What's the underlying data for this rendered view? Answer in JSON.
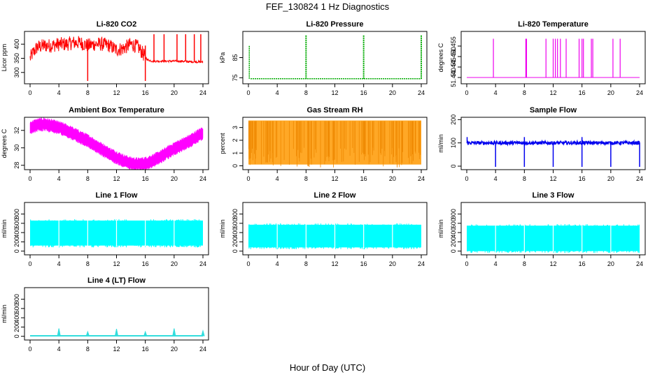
{
  "title": "FEF_130824  1 Hz Diagnostics",
  "xlabel": "Hour of Day (UTC)",
  "chart_data": [
    {
      "type": "line",
      "title": "Li-820 CO2",
      "ylabel": "Licor ppm",
      "xlim": [
        0,
        24
      ],
      "ylim": [
        260,
        445
      ],
      "xticks": [
        0,
        4,
        8,
        12,
        16,
        20,
        24
      ],
      "yticks": [
        300,
        350,
        400
      ],
      "ytick_labels": [
        "300",
        "350",
        "400"
      ],
      "color": "#ff0000",
      "pattern": "co2",
      "series": [
        {
          "x": [
            0,
            0.3,
            1,
            2,
            3,
            4,
            5,
            6,
            7,
            8,
            9,
            10,
            11,
            12,
            13,
            14,
            15,
            16,
            16.3,
            17,
            18,
            19,
            20,
            21,
            22,
            23,
            24
          ],
          "values": [
            350,
            365,
            390,
            395,
            395,
            400,
            400,
            405,
            405,
            395,
            400,
            400,
            395,
            380,
            385,
            400,
            390,
            355,
            345,
            340,
            340,
            340,
            340,
            340,
            338,
            338,
            337
          ]
        }
      ]
    },
    {
      "type": "line",
      "title": "Li-820 Pressure",
      "ylabel": "kPa",
      "xlim": [
        0,
        24
      ],
      "ylim": [
        72,
        98
      ],
      "xticks": [
        0,
        4,
        8,
        12,
        16,
        20,
        24
      ],
      "yticks": [
        75,
        85
      ],
      "ytick_labels": [
        "75",
        "85"
      ],
      "color": "#00aa00",
      "pattern": "pressure",
      "series": [
        {
          "x": [
            0,
            24
          ],
          "values": [
            74.5,
            74.5
          ]
        }
      ]
    },
    {
      "type": "line",
      "title": "Li-820 Temperature",
      "ylabel": "degrees C",
      "xlim": [
        0,
        24
      ],
      "ylim": [
        51.437,
        51.462
      ],
      "xticks": [
        0,
        4,
        8,
        12,
        16,
        20,
        24
      ],
      "yticks": [
        51.44,
        51.445,
        51.45,
        51.455
      ],
      "ytick_labels": [
        "51.440",
        "51.445",
        "51.450",
        "51.455"
      ],
      "color": "#ee00ee",
      "pattern": "temp",
      "series": [
        {
          "x": [
            0,
            24
          ],
          "values": [
            51.44,
            51.44
          ]
        }
      ]
    },
    {
      "type": "line",
      "title": "Ambient Box Temperature",
      "ylabel": "degrees C",
      "xlim": [
        0,
        24
      ],
      "ylim": [
        27.5,
        33.5
      ],
      "xticks": [
        0,
        4,
        8,
        12,
        16,
        20,
        24
      ],
      "yticks": [
        28,
        30,
        32
      ],
      "ytick_labels": [
        "28",
        "30",
        "32"
      ],
      "color": "#ff00ff",
      "pattern": "band",
      "series": [
        {
          "x": [
            0,
            1,
            2,
            3,
            4,
            5,
            6,
            7,
            8,
            9,
            10,
            11,
            12,
            13,
            14,
            15,
            16,
            17,
            18,
            19,
            20,
            21,
            22,
            23,
            24
          ],
          "values": [
            32.3,
            32.6,
            32.7,
            32.5,
            32.3,
            32.0,
            31.6,
            31.2,
            30.8,
            30.3,
            29.8,
            29.3,
            28.9,
            28.5,
            28.2,
            28.1,
            28.2,
            28.5,
            28.9,
            29.4,
            29.9,
            30.3,
            30.7,
            31.2,
            31.7
          ]
        }
      ]
    },
    {
      "type": "line",
      "title": "Gas Stream RH",
      "ylabel": "percent",
      "xlim": [
        0,
        24
      ],
      "ylim": [
        -0.3,
        3.8
      ],
      "xticks": [
        0,
        4,
        8,
        12,
        16,
        20,
        24
      ],
      "yticks": [
        0,
        1,
        2,
        3
      ],
      "ytick_labels": [
        "0",
        "1",
        "2",
        "3"
      ],
      "color": "#ff9900",
      "pattern": "rh",
      "series": [
        {
          "x": [
            0,
            24
          ],
          "values": [
            3.5,
            3.5
          ]
        }
      ]
    },
    {
      "type": "line",
      "title": "Sample Flow",
      "ylabel": "ml/min",
      "xlim": [
        0,
        24
      ],
      "ylim": [
        -15,
        210
      ],
      "xticks": [
        0,
        4,
        8,
        12,
        16,
        20,
        24
      ],
      "yticks": [
        0,
        100,
        200
      ],
      "ytick_labels": [
        "0",
        "100",
        "200"
      ],
      "color": "#0000ee",
      "pattern": "sample",
      "series": [
        {
          "x": [
            0,
            24
          ],
          "values": [
            100,
            100
          ]
        }
      ]
    },
    {
      "type": "area",
      "title": "Line 1 Flow",
      "ylabel": "ml/min",
      "xlim": [
        0,
        24
      ],
      "ylim": [
        -80,
        1050
      ],
      "xticks": [
        0,
        4,
        8,
        12,
        16,
        20,
        24
      ],
      "yticks": [
        0,
        200,
        400,
        600,
        800
      ],
      "ytick_labels": [
        "0",
        "200",
        "400",
        "600",
        "800"
      ],
      "color": "#00ffff",
      "pattern": "flow",
      "series": [
        {
          "x": [
            0,
            24
          ],
          "values": [
            120,
            660
          ]
        }
      ]
    },
    {
      "type": "area",
      "title": "Line 2 Flow",
      "ylabel": "ml/min",
      "xlim": [
        0,
        24
      ],
      "ylim": [
        -80,
        1050
      ],
      "xticks": [
        0,
        4,
        8,
        12,
        16,
        20,
        24
      ],
      "yticks": [
        0,
        200,
        400,
        600,
        800
      ],
      "ytick_labels": [
        "0",
        "200",
        "400",
        "600",
        "800"
      ],
      "color": "#00ffff",
      "pattern": "flow",
      "series": [
        {
          "x": [
            0,
            24
          ],
          "values": [
            80,
            570
          ]
        }
      ]
    },
    {
      "type": "area",
      "title": "Line 3 Flow",
      "ylabel": "ml/min",
      "xlim": [
        0,
        24
      ],
      "ylim": [
        -80,
        1050
      ],
      "xticks": [
        0,
        4,
        8,
        12,
        16,
        20,
        24
      ],
      "yticks": [
        0,
        200,
        400,
        600,
        800
      ],
      "ytick_labels": [
        "0",
        "200",
        "400",
        "600",
        "800"
      ],
      "color": "#00ffff",
      "pattern": "flow",
      "series": [
        {
          "x": [
            0,
            24
          ],
          "values": [
            0,
            550
          ]
        }
      ]
    },
    {
      "type": "line",
      "title": "Line 4 (LT) Flow",
      "ylabel": "ml/min",
      "xlim": [
        0,
        24
      ],
      "ylim": [
        -80,
        1050
      ],
      "xticks": [
        0,
        4,
        8,
        12,
        16,
        20,
        24
      ],
      "yticks": [
        0,
        200,
        400,
        600,
        800
      ],
      "ytick_labels": [
        "0",
        "200",
        "400",
        "600",
        "800"
      ],
      "color": "#33dddd",
      "pattern": "line4",
      "series": [
        {
          "x": [
            0,
            24
          ],
          "values": [
            10,
            10
          ]
        }
      ]
    }
  ]
}
